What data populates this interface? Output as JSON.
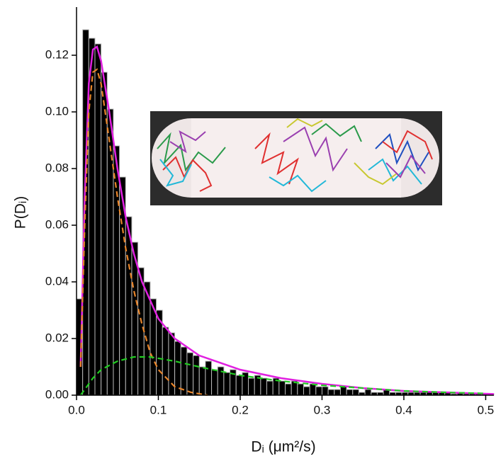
{
  "chart_data": {
    "type": "histogram",
    "x_label": "Dᵢ (μm²/s)",
    "y_label": "P(Dᵢ)",
    "xlim": [
      0,
      0.51
    ],
    "ylim": [
      0,
      0.137
    ],
    "xticks": [
      {
        "value": 0,
        "label": "0.0"
      },
      0.1,
      0.2,
      0.3,
      0.4,
      0.5
    ],
    "yticks": [
      {
        "value": 0,
        "label": "0.00"
      },
      0.02,
      0.04,
      0.06,
      0.08,
      {
        "value": 0.1,
        "label": "0.10"
      },
      0.12
    ],
    "color": "#000000",
    "bins": [
      0,
      0.0075,
      0.015,
      0.0225,
      0.03,
      0.0375,
      0.045,
      0.0525,
      0.06,
      0.0675,
      0.075,
      0.0825,
      0.09,
      0.0975,
      0.105,
      0.1125,
      0.12,
      0.1275,
      0.135,
      0.1425,
      0.15,
      0.1575,
      0.165,
      0.1725,
      0.18,
      0.1875,
      0.195,
      0.2025,
      0.21,
      0.2175,
      0.225,
      0.2325,
      0.24,
      0.2475,
      0.255,
      0.2625,
      0.27,
      0.2775,
      0.285,
      0.2925,
      0.3,
      0.3075,
      0.315,
      0.3225,
      0.33,
      0.3375,
      0.345,
      0.3525,
      0.36,
      0.3675,
      0.375,
      0.3825,
      0.39,
      0.3975,
      0.405,
      0.4125,
      0.42,
      0.4275,
      0.435,
      0.4425,
      0.45,
      0.4575,
      0.465,
      0.4725,
      0.48,
      0.4875,
      0.495,
      0.5025,
      0.51
    ],
    "values": [
      0.034,
      0.129,
      0.126,
      0.124,
      0.114,
      0.101,
      0.088,
      0.077,
      0.063,
      0.054,
      0.045,
      0.04,
      0.034,
      0.03,
      0.024,
      0.022,
      0.019,
      0.017,
      0.015,
      0.014,
      0.01,
      0.012,
      0.009,
      0.01,
      0.008,
      0.009,
      0.007,
      0.008,
      0.006,
      0.007,
      0.006,
      0.005,
      0.006,
      0.005,
      0.004,
      0.005,
      0.004,
      0.003,
      0.004,
      0.003,
      0.003,
      0.002,
      0.002,
      0.003,
      0.002,
      0.002,
      0.001,
      0.002,
      0.001,
      0.001,
      0.002,
      0.001,
      0.001,
      0.001,
      0.001,
      0.001,
      0.001,
      0.001,
      0.001,
      0.001,
      0.001,
      0.0005,
      0.001,
      0.0005,
      0.0005,
      0.0005,
      0.0005,
      0.0005
    ],
    "series": [
      {
        "color": "#e020e0",
        "dashed": false,
        "x": [
          0.005,
          0.01,
          0.015,
          0.02,
          0.025,
          0.03,
          0.04,
          0.05,
          0.06,
          0.07,
          0.08,
          0.1,
          0.12,
          0.15,
          0.2,
          0.25,
          0.3,
          0.35,
          0.4,
          0.45,
          0.5,
          0.51
        ],
        "values": [
          0.01,
          0.07,
          0.11,
          0.122,
          0.123,
          0.118,
          0.1,
          0.08,
          0.063,
          0.05,
          0.04,
          0.027,
          0.02,
          0.014,
          0.009,
          0.006,
          0.004,
          0.0025,
          0.0015,
          0.001,
          0.0005,
          0.0004
        ]
      },
      {
        "color": "#e8852a",
        "dashed": true,
        "x": [
          0.005,
          0.01,
          0.015,
          0.02,
          0.025,
          0.03,
          0.04,
          0.05,
          0.06,
          0.07,
          0.08,
          0.09,
          0.1,
          0.12,
          0.14,
          0.16
        ],
        "values": [
          0.01,
          0.06,
          0.1,
          0.114,
          0.115,
          0.11,
          0.09,
          0.07,
          0.052,
          0.037,
          0.025,
          0.015,
          0.009,
          0.003,
          0.001,
          0
        ]
      },
      {
        "color": "#22cc22",
        "dashed": true,
        "x": [
          0.005,
          0.01,
          0.02,
          0.03,
          0.05,
          0.07,
          0.09,
          0.12,
          0.15,
          0.2,
          0.25,
          0.3,
          0.35,
          0.4,
          0.45,
          0.5
        ],
        "values": [
          0,
          0.002,
          0.006,
          0.009,
          0.012,
          0.0135,
          0.0135,
          0.012,
          0.01,
          0.007,
          0.005,
          0.0035,
          0.0025,
          0.0015,
          0.001,
          0.0006
        ]
      }
    ]
  }
}
